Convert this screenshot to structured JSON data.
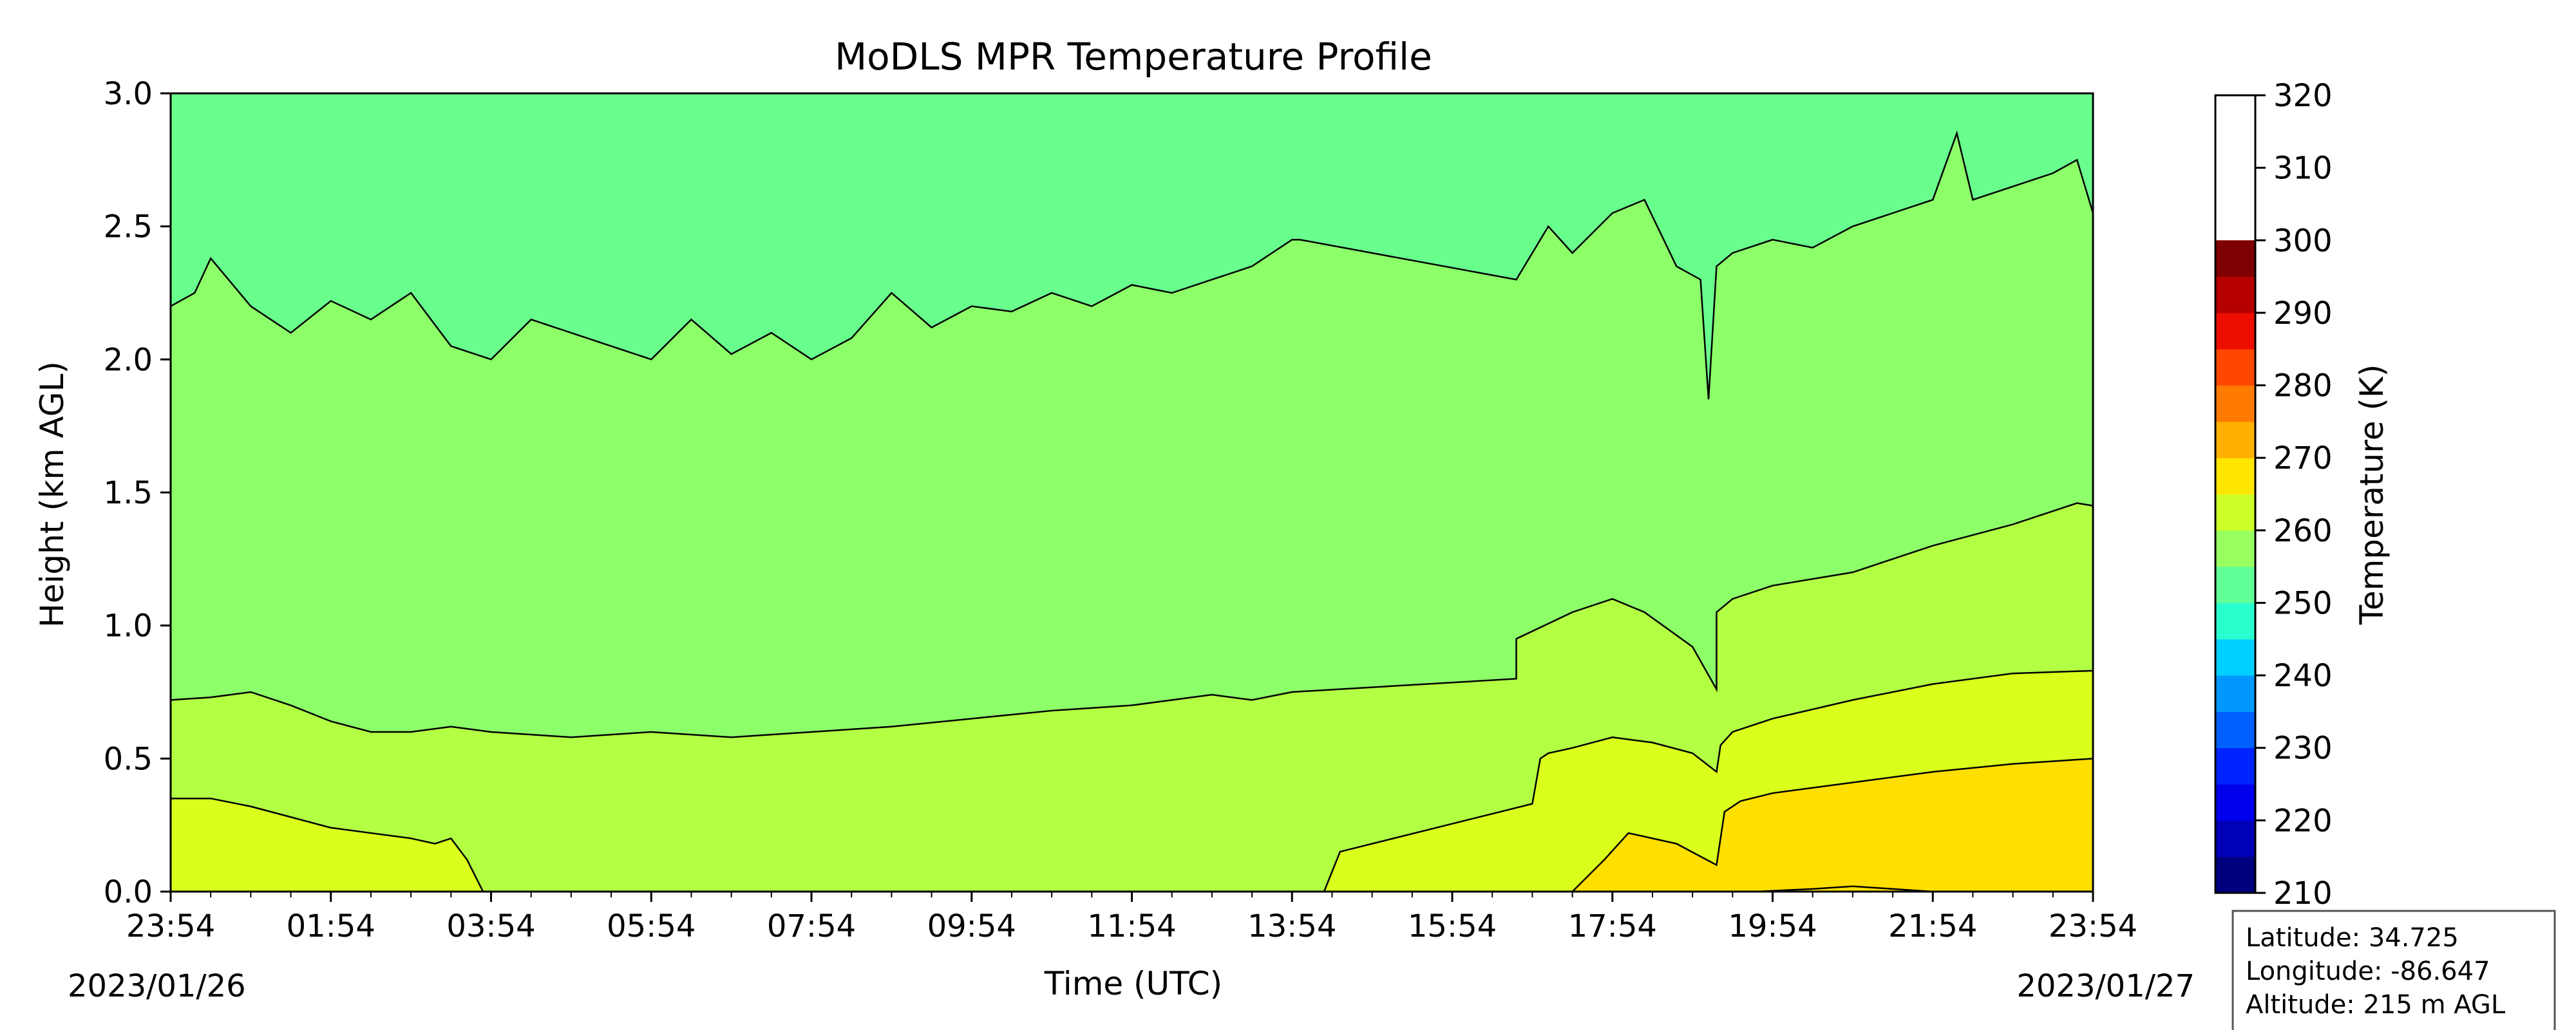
{
  "chart_data": {
    "type": "contour",
    "title": "MoDLS MPR Temperature Profile",
    "xlabel": "Time (UTC)",
    "ylabel": "Height (km AGL)",
    "x_tick_labels": [
      "23:54",
      "01:54",
      "03:54",
      "05:54",
      "07:54",
      "09:54",
      "11:54",
      "13:54",
      "15:54",
      "17:54",
      "19:54",
      "21:54",
      "23:54"
    ],
    "x_tick_hours": [
      0,
      2,
      4,
      6,
      8,
      10,
      12,
      14,
      16,
      18,
      20,
      22,
      24
    ],
    "xlim_hours": [
      0,
      24
    ],
    "start_date": "2023/01/26",
    "end_date": "2023/01/27",
    "ylim": [
      0,
      3
    ],
    "y_ticks": [
      0.0,
      0.5,
      1.0,
      1.5,
      2.0,
      2.5,
      3.0
    ],
    "y_tick_labels": [
      "0.0",
      "0.5",
      "1.0",
      "1.5",
      "2.0",
      "2.5",
      "3.0"
    ],
    "colorbar": {
      "label": "Temperature (K)",
      "vmin": 210,
      "vmax": 320,
      "step": 5,
      "tick_values": [
        210,
        220,
        230,
        240,
        250,
        260,
        270,
        280,
        290,
        300,
        310,
        320
      ],
      "tick_labels": [
        "210",
        "220",
        "230",
        "240",
        "250",
        "260",
        "270",
        "280",
        "290",
        "300",
        "310",
        "320"
      ],
      "colors": [
        "#00007f",
        "#0000b6",
        "#0000ed",
        "#0024ff",
        "#0060ff",
        "#0098ff",
        "#00d0ff",
        "#29ffce",
        "#60ff97",
        "#97ff60",
        "#ceff29",
        "#ffe600",
        "#ffb000",
        "#ff7a00",
        "#ff4700",
        "#ed0e00",
        "#b60000",
        "#7f0000"
      ]
    },
    "filled_levels": [
      {
        "range": [
          260,
          265
        ],
        "color": "#69ff8d"
      },
      {
        "range": [
          265,
          270
        ],
        "color": "#8dff69"
      },
      {
        "range": [
          270,
          275
        ],
        "color": "#b2ff44"
      },
      {
        "range": [
          275,
          280
        ],
        "color": "#dbff1c"
      },
      {
        "range": [
          280,
          285
        ],
        "color": "#ffdf00"
      }
    ],
    "contours": [
      {
        "level": 265,
        "x_hours": [
          0,
          0.3,
          0.5,
          1.0,
          1.5,
          2.0,
          2.5,
          3.0,
          3.5,
          4.0,
          4.5,
          5.0,
          5.5,
          6.0,
          6.5,
          7.0,
          7.5,
          8.0,
          8.5,
          9.0,
          9.5,
          10.0,
          10.5,
          11.0,
          11.5,
          12.0,
          12.5,
          13.0,
          13.5,
          14.0,
          14.1,
          16.8,
          17.2,
          17.5,
          18.0,
          18.4,
          18.8,
          19.1,
          19.2,
          19.3,
          19.5,
          20.0,
          20.5,
          21.0,
          21.5,
          22.0,
          22.3,
          22.5,
          23.0,
          23.5,
          23.8,
          24.0
        ],
        "heights": [
          2.2,
          2.25,
          2.38,
          2.2,
          2.1,
          2.22,
          2.15,
          2.25,
          2.05,
          2.0,
          2.15,
          2.1,
          2.05,
          2.0,
          2.15,
          2.02,
          2.1,
          2.0,
          2.08,
          2.25,
          2.12,
          2.2,
          2.18,
          2.25,
          2.2,
          2.28,
          2.25,
          2.3,
          2.35,
          2.45,
          2.45,
          2.3,
          2.5,
          2.4,
          2.55,
          2.6,
          2.35,
          2.3,
          1.85,
          2.35,
          2.4,
          2.45,
          2.42,
          2.5,
          2.55,
          2.6,
          2.85,
          2.6,
          2.65,
          2.7,
          2.75,
          2.55
        ]
      },
      {
        "level": 270,
        "x_hours": [
          0,
          0.5,
          1.0,
          1.5,
          2.0,
          2.5,
          3.0,
          3.5,
          4.0,
          5.0,
          6.0,
          7.0,
          8.0,
          9.0,
          10.0,
          11.0,
          12.0,
          13.0,
          13.5,
          14.0,
          16.8,
          16.8,
          17.5,
          18.0,
          18.4,
          19.0,
          19.3,
          19.3,
          19.5,
          20.0,
          21.0,
          22.0,
          23.0,
          23.8,
          24.0
        ],
        "heights": [
          0.72,
          0.73,
          0.75,
          0.7,
          0.64,
          0.6,
          0.6,
          0.62,
          0.6,
          0.58,
          0.6,
          0.58,
          0.6,
          0.62,
          0.65,
          0.68,
          0.7,
          0.74,
          0.72,
          0.75,
          0.8,
          0.95,
          1.05,
          1.1,
          1.05,
          0.92,
          0.76,
          1.05,
          1.1,
          1.15,
          1.2,
          1.3,
          1.38,
          1.46,
          1.45
        ]
      },
      {
        "level": 275,
        "x_hours": [
          0,
          0.5,
          1.0,
          1.5,
          2.0,
          2.5,
          3.0,
          3.3,
          3.5,
          3.7,
          3.9,
          14.4,
          14.6,
          17.0,
          17.1,
          17.2,
          17.5,
          18.0,
          18.5,
          19.0,
          19.3,
          19.35,
          19.5,
          20.0,
          21.0,
          22.0,
          23.0,
          24.0
        ],
        "heights": [
          0.35,
          0.35,
          0.32,
          0.28,
          0.24,
          0.22,
          0.2,
          0.18,
          0.2,
          0.12,
          0.0,
          0.0,
          0.15,
          0.33,
          0.5,
          0.52,
          0.54,
          0.58,
          0.56,
          0.52,
          0.45,
          0.55,
          0.6,
          0.65,
          0.72,
          0.78,
          0.82,
          0.83
        ]
      },
      {
        "level": 280,
        "x_hours": [
          17.5,
          17.9,
          18.2,
          18.8,
          19.3,
          19.4,
          19.6,
          20.0,
          21.0,
          22.0,
          23.0,
          24.0
        ],
        "heights": [
          0.0,
          0.12,
          0.22,
          0.18,
          0.1,
          0.3,
          0.34,
          0.37,
          0.41,
          0.45,
          0.48,
          0.5
        ]
      },
      {
        "level": 285,
        "x_hours": [
          19.8,
          20.5,
          21.0,
          21.5,
          22.0
        ],
        "heights": [
          0.0,
          0.01,
          0.02,
          0.01,
          0.0
        ]
      }
    ]
  },
  "info_box": {
    "latitude": "Latitude: 34.725",
    "longitude": "Longitude: -86.647",
    "altitude": "Altitude: 215 m AGL"
  }
}
